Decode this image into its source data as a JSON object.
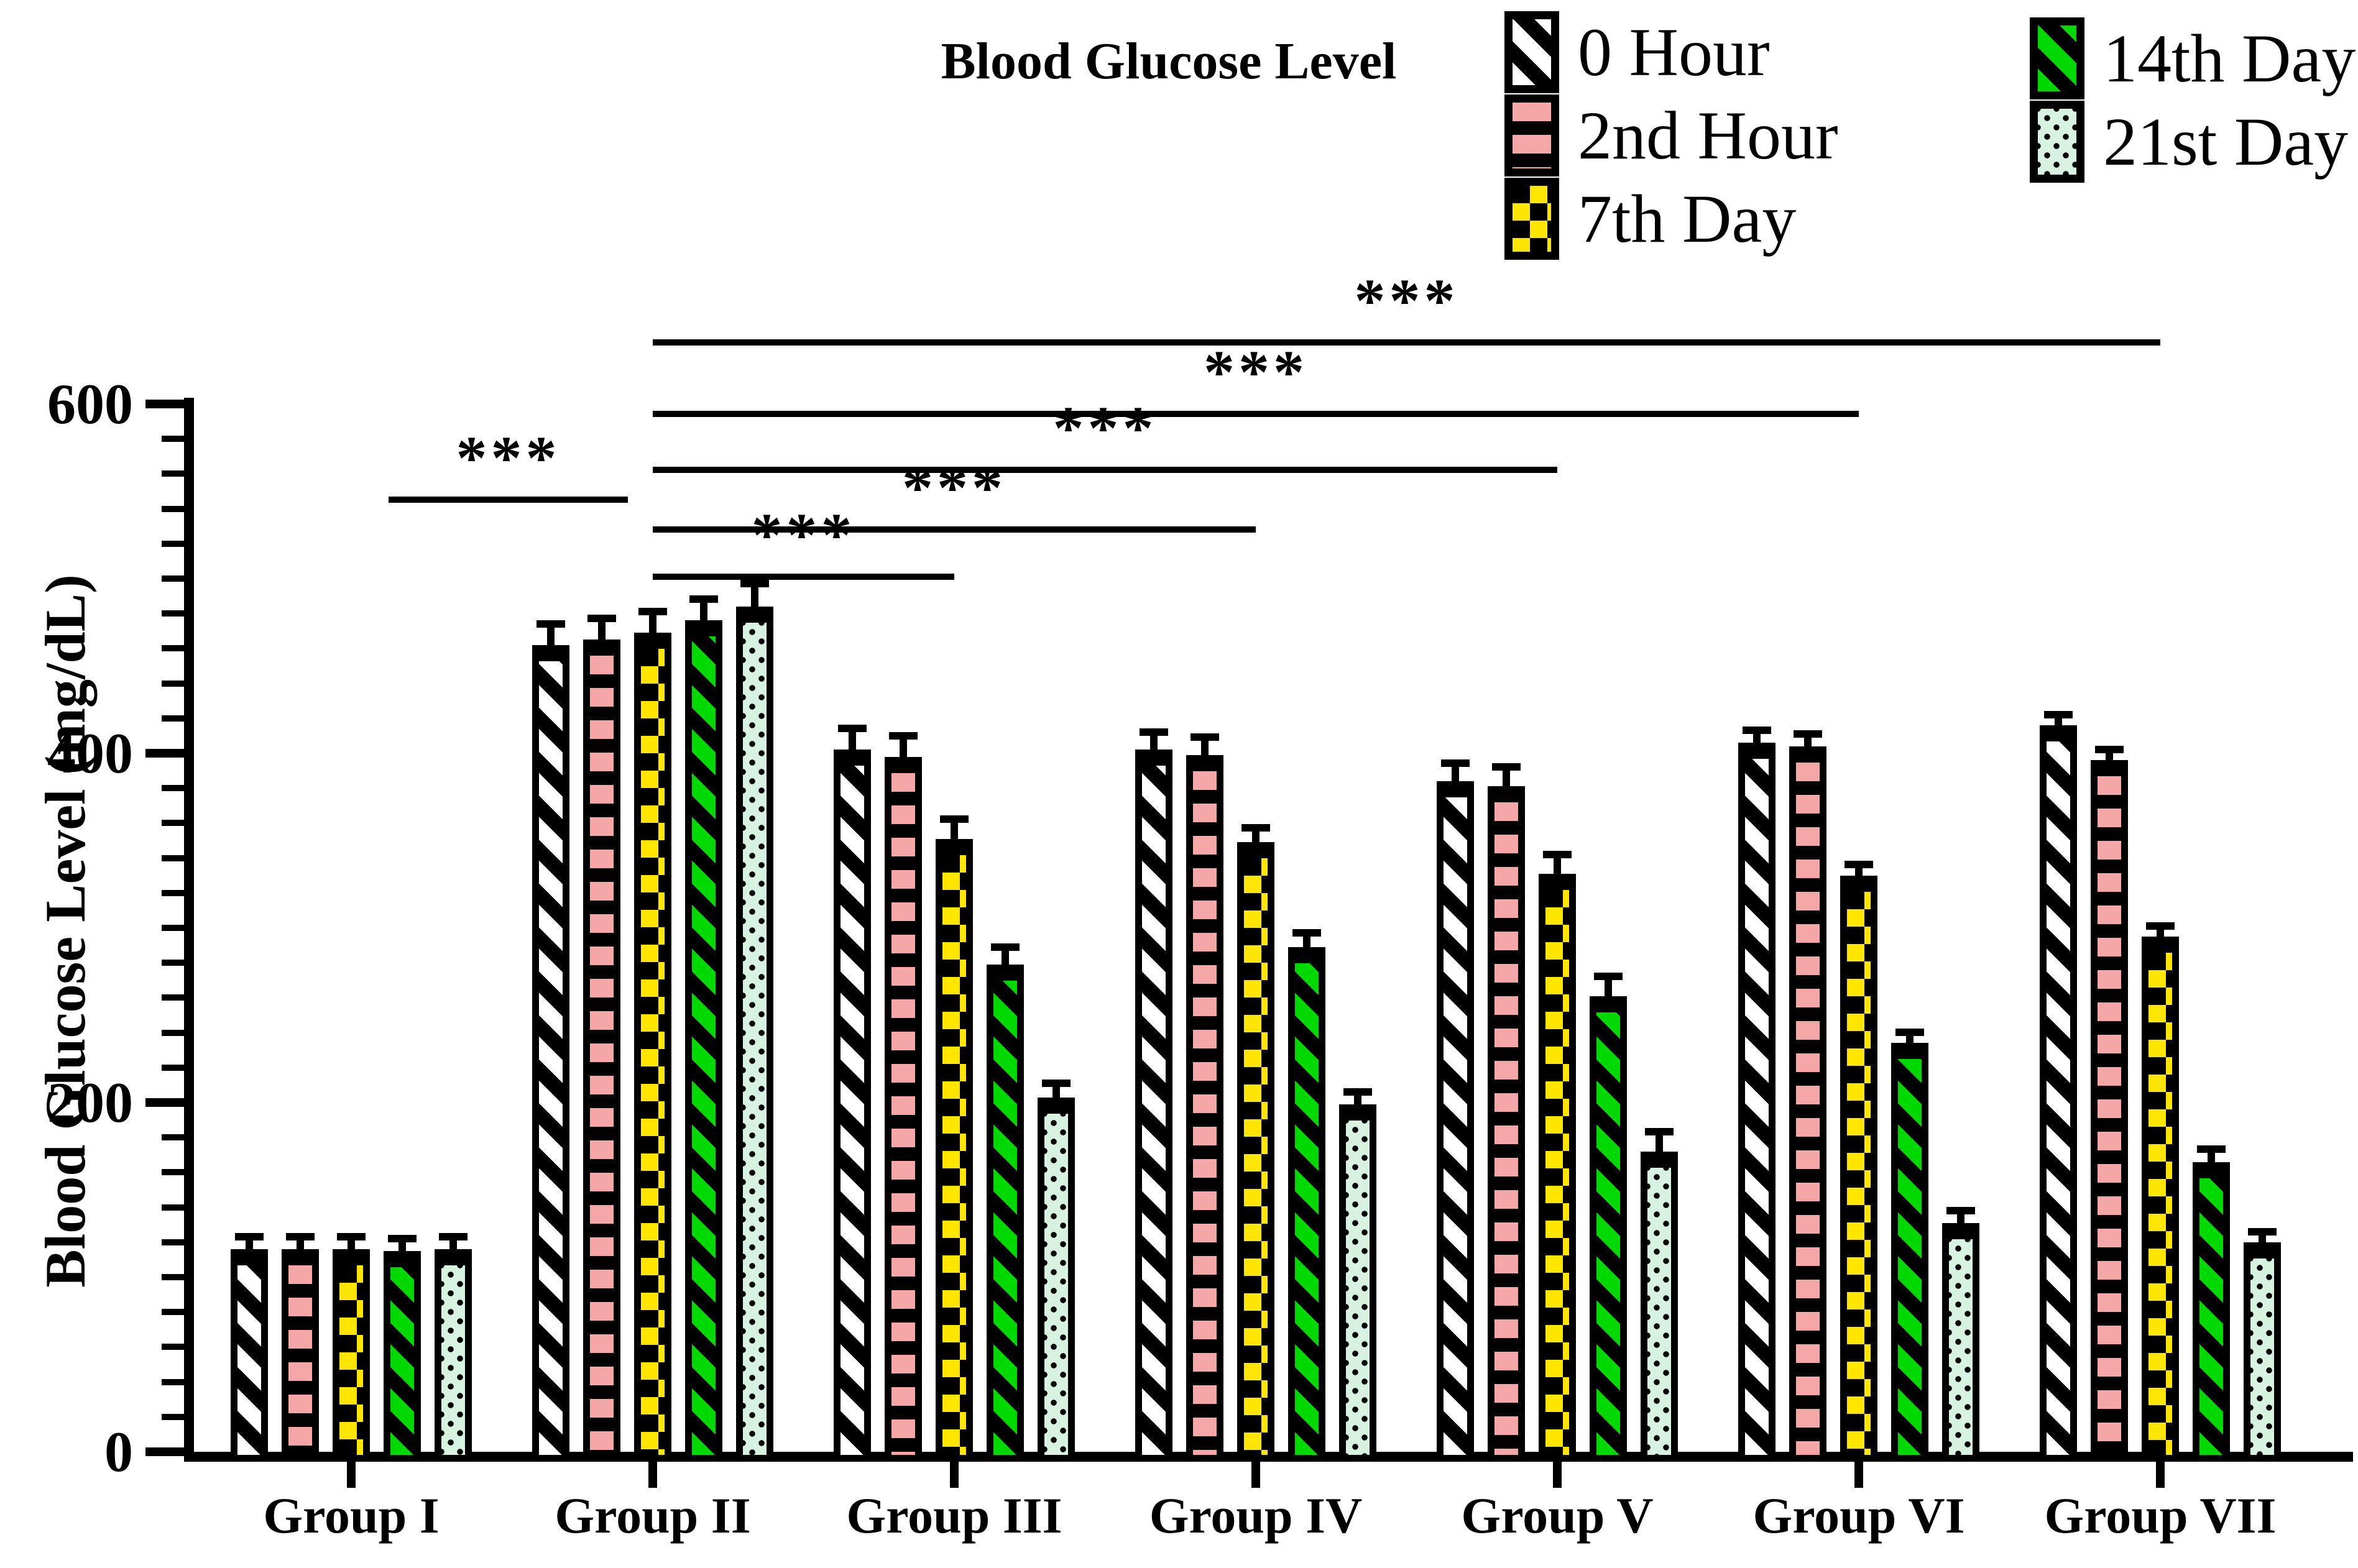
{
  "title": "Blood Glucose Level",
  "y_axis": {
    "label": "Blood Glucose Level (mg/dL)",
    "min": 0,
    "max": 600,
    "major_ticks": [
      0,
      200,
      400,
      600
    ],
    "minor_step": 20
  },
  "x_axis": {
    "categories": [
      "Group I",
      "Group II",
      "Group III",
      "Group IV",
      "Group V",
      "Group VI",
      "Group VII"
    ]
  },
  "legend": [
    {
      "label": "0 Hour",
      "pattern": "hour0"
    },
    {
      "label": "2nd Hour",
      "pattern": "hour2"
    },
    {
      "label": "7th Day",
      "pattern": "day7"
    },
    {
      "label": "14th Day",
      "pattern": "day14"
    },
    {
      "label": "21st Day",
      "pattern": "day21"
    }
  ],
  "chart_data": {
    "type": "bar",
    "title": "Blood Glucose Level",
    "xlabel": "",
    "ylabel": "Blood Glucose Level (mg/dL)",
    "ylim": [
      0,
      600
    ],
    "grid": false,
    "legend_position": "top-right",
    "categories": [
      "Group I",
      "Group II",
      "Group III",
      "Group IV",
      "Group V",
      "Group VI",
      "Group VII"
    ],
    "series": [
      {
        "name": "0 Hour",
        "pattern": "hour0",
        "values": [
          116,
          462,
          402,
          402,
          384,
          406,
          416
        ],
        "errors": [
          5,
          10,
          10,
          8,
          8,
          5,
          4
        ]
      },
      {
        "name": "2nd Hour",
        "pattern": "hour2",
        "values": [
          116,
          465,
          398,
          399,
          381,
          404,
          396
        ],
        "errors": [
          5,
          10,
          10,
          8,
          9,
          5,
          4
        ]
      },
      {
        "name": "7th Day",
        "pattern": "day7",
        "values": [
          116,
          469,
          351,
          349,
          331,
          330,
          295
        ],
        "errors": [
          5,
          10,
          9,
          6,
          9,
          4,
          4
        ]
      },
      {
        "name": "14th Day",
        "pattern": "day14",
        "values": [
          115,
          476,
          279,
          289,
          261,
          234,
          166
        ],
        "errors": [
          5,
          10,
          8,
          6,
          9,
          4,
          5
        ]
      },
      {
        "name": "21st Day",
        "pattern": "day21",
        "values": [
          116,
          484,
          203,
          199,
          172,
          131,
          120
        ],
        "errors": [
          5,
          11,
          6,
          5,
          9,
          5,
          4
        ]
      }
    ]
  },
  "significance": [
    {
      "from": "Group I",
      "to": "Group II",
      "label": "***",
      "y": 547
    },
    {
      "from": "Group II",
      "to": "Group III",
      "label": "***",
      "y": 503
    },
    {
      "from": "Group II",
      "to": "Group IV",
      "label": "***",
      "y": 530
    },
    {
      "from": "Group II",
      "to": "Group V",
      "label": "***",
      "y": 564
    },
    {
      "from": "Group II",
      "to": "Group VI",
      "label": "***",
      "y": 596
    },
    {
      "from": "Group II",
      "to": "Group VII",
      "label": "***",
      "y": 637
    }
  ],
  "colors": {
    "pink": "#F5A6A6",
    "yellow": "#FFE600",
    "green": "#00D900",
    "mint": "#D8F2E2",
    "black": "#000000",
    "white": "#FFFFFF"
  }
}
